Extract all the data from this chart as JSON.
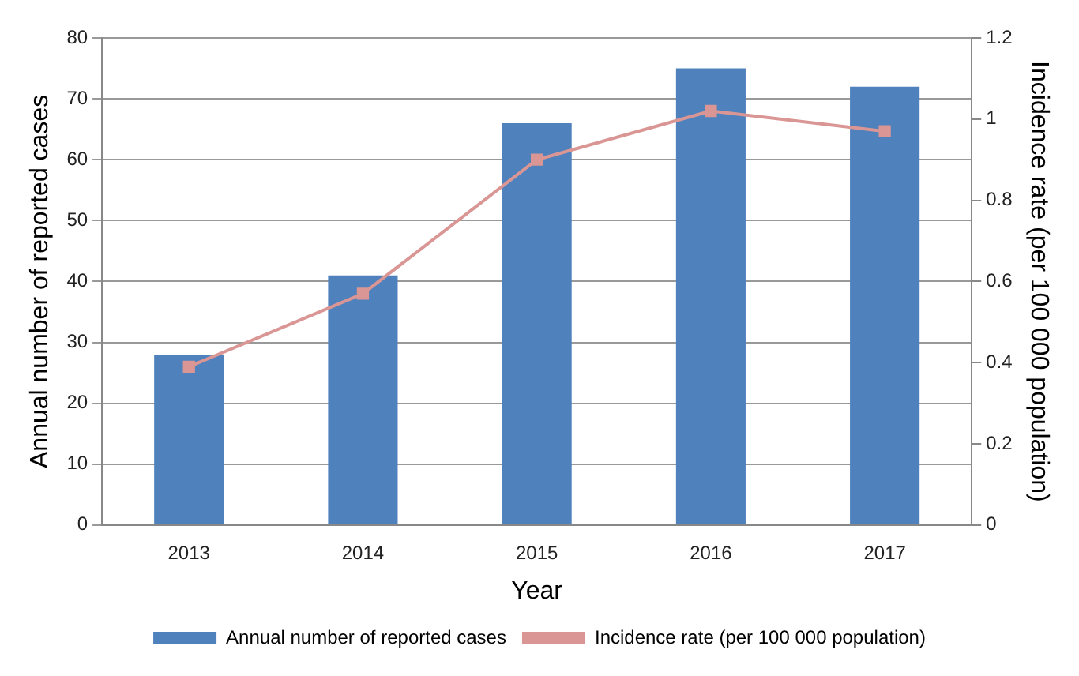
{
  "chart_data": {
    "type": "bar",
    "categories": [
      "2013",
      "2014",
      "2015",
      "2016",
      "2017"
    ],
    "xlabel": "Year",
    "ylabel": "Annual number of reported cases",
    "y2label": "Incidence rate (per 100 000 population)",
    "series": [
      {
        "name": "Annual number of reported cases",
        "color": "#4f81bd",
        "values": [
          28,
          41,
          66,
          75,
          72
        ]
      },
      {
        "name": "Incidence rate (per 100 000 population)",
        "type": "line",
        "axis": "y2",
        "color": "#d99694",
        "marker": "square",
        "values": [
          0.39,
          0.57,
          0.9,
          1.02,
          0.97
        ]
      }
    ],
    "ylim": [
      0,
      80
    ],
    "yticks": [
      0,
      10,
      20,
      30,
      40,
      50,
      60,
      70,
      80
    ],
    "y2lim": [
      0,
      1.2
    ],
    "y2ticks": [
      0,
      0.2,
      0.4,
      0.6,
      0.8,
      1,
      1.2
    ],
    "grid": "y",
    "legend": "bottom"
  }
}
